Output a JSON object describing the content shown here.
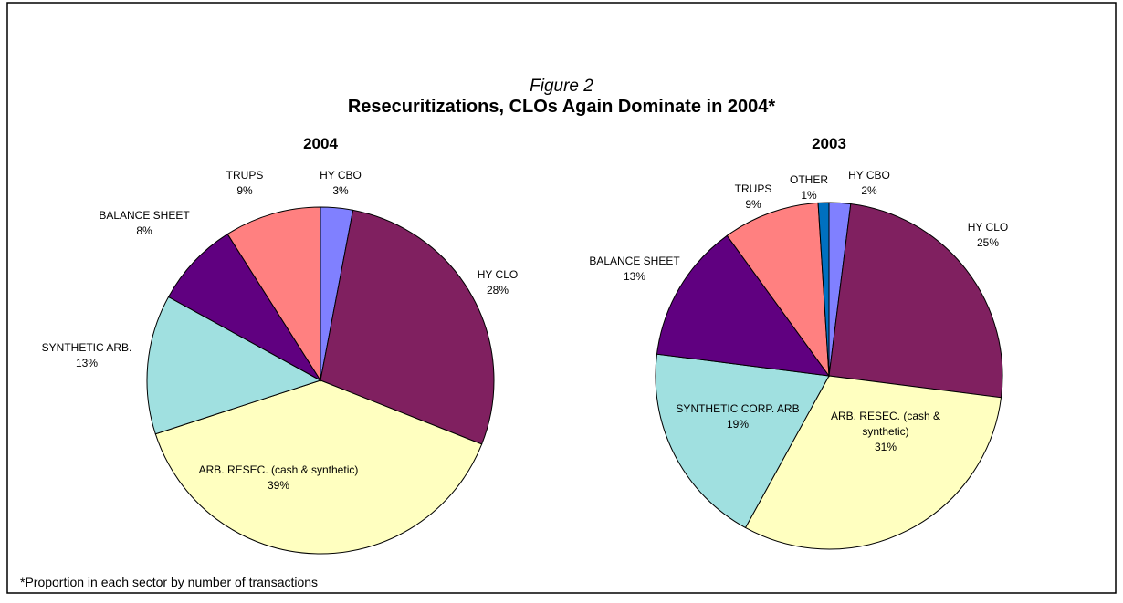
{
  "figure_label": "Figure 2",
  "title": "Resecuritizations, CLOs Again Dominate in 2004*",
  "footnote": "*Proportion in each sector by number of transactions",
  "chart_data": [
    {
      "type": "pie",
      "title": "2004",
      "categories": [
        "HY CBO",
        "HY CLO",
        "ARB. RESEC. (cash & synthetic)",
        "SYNTHETIC ARB.",
        "BALANCE SHEET",
        "TRUPS"
      ],
      "values": [
        3,
        28,
        39,
        13,
        8,
        9
      ],
      "value_labels": [
        "3%",
        "28%",
        "39%",
        "13%",
        "8%",
        "9%"
      ],
      "colors": [
        "#8080ff",
        "#802060",
        "#ffffc0",
        "#a0e0e0",
        "#600080",
        "#ff8080"
      ]
    },
    {
      "type": "pie",
      "title": "2003",
      "categories": [
        "HY CBO",
        "HY CLO",
        "ARB. RESEC. (cash & synthetic)",
        "SYNTHETIC CORP. ARB",
        "BALANCE SHEET",
        "TRUPS",
        "OTHER"
      ],
      "values": [
        2,
        25,
        31,
        19,
        13,
        9,
        1
      ],
      "value_labels": [
        "2%",
        "25%",
        "31%",
        "19%",
        "13%",
        "9%",
        "1%"
      ],
      "colors": [
        "#8080ff",
        "#802060",
        "#ffffc0",
        "#a0e0e0",
        "#600080",
        "#ff8080",
        "#0070c0"
      ]
    }
  ]
}
